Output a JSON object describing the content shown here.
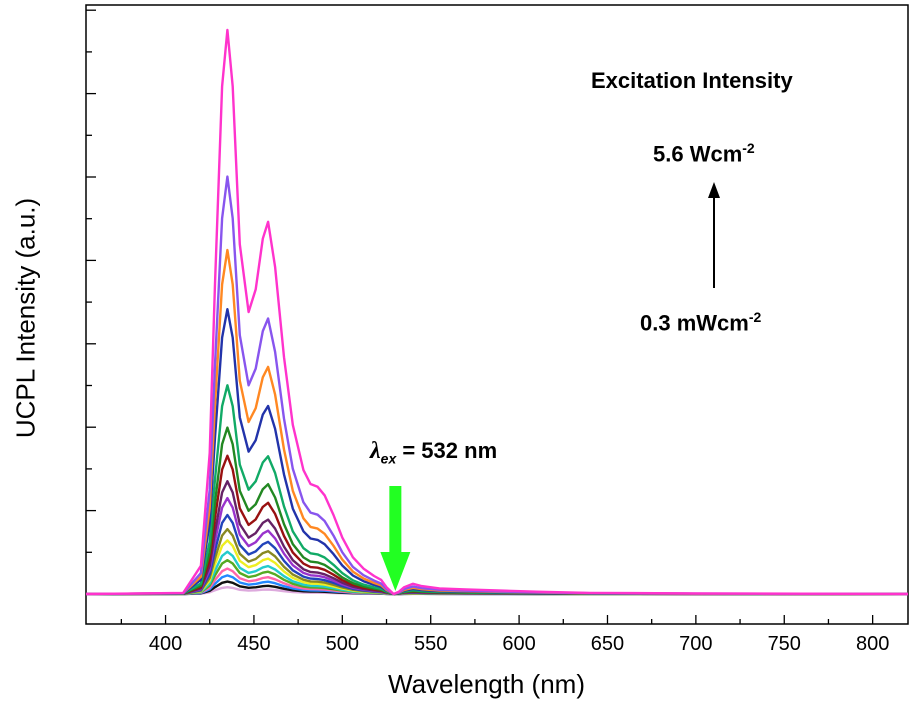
{
  "chart_data": {
    "type": "line",
    "xlabel": "Wavelength (nm)",
    "ylabel": "UCPL Intensity (a.u.)",
    "xlim": [
      355,
      820
    ],
    "ylim": [
      0,
      1.04
    ],
    "x_ticks": [
      400,
      450,
      500,
      550,
      600,
      650,
      700,
      750,
      800
    ],
    "y_ticks_labeled": false,
    "annotations": {
      "title": "Excitation Intensity",
      "high_value": "5.6 Wcm",
      "high_sup": "-2",
      "low_value": "0.3 mWcm",
      "low_sup": "-2",
      "excitation_symbol": "λ",
      "excitation_sub": "ex",
      "excitation_text": " = 532 nm"
    },
    "excitation_marker": {
      "x": 530,
      "color": "#22ff22"
    },
    "spectrum_shape": {
      "x": [
        355,
        410,
        420,
        425,
        428,
        432,
        435,
        438,
        442,
        447,
        451,
        455,
        458,
        462,
        467,
        472,
        478,
        482,
        486,
        490,
        495,
        500,
        506,
        512,
        518,
        522,
        525,
        529,
        532,
        535,
        540,
        545,
        555,
        570,
        590,
        610,
        640,
        700,
        820
      ],
      "y": [
        0,
        0.002,
        0.05,
        0.25,
        0.55,
        0.9,
        1.0,
        0.9,
        0.62,
        0.5,
        0.54,
        0.63,
        0.66,
        0.58,
        0.42,
        0.3,
        0.22,
        0.195,
        0.19,
        0.175,
        0.14,
        0.1,
        0.065,
        0.045,
        0.032,
        0.025,
        0.012,
        0.0,
        0.004,
        0.012,
        0.018,
        0.014,
        0.01,
        0.008,
        0.006,
        0.004,
        0.002,
        0.001,
        0.0
      ]
    },
    "series": [
      {
        "peak": 1.0,
        "color": "#ff33cc"
      },
      {
        "peak": 0.74,
        "color": "#8855ee"
      },
      {
        "peak": 0.61,
        "color": "#ff8822"
      },
      {
        "peak": 0.505,
        "color": "#2233aa"
      },
      {
        "peak": 0.37,
        "color": "#11aa66"
      },
      {
        "peak": 0.295,
        "color": "#228822"
      },
      {
        "peak": 0.245,
        "color": "#991111"
      },
      {
        "peak": 0.2,
        "color": "#662266"
      },
      {
        "peak": 0.17,
        "color": "#9933cc"
      },
      {
        "peak": 0.14,
        "color": "#2244bb"
      },
      {
        "peak": 0.115,
        "color": "#888822"
      },
      {
        "peak": 0.095,
        "color": "#eeee22"
      },
      {
        "peak": 0.075,
        "color": "#22cccc"
      },
      {
        "peak": 0.06,
        "color": "#55aa22"
      },
      {
        "peak": 0.045,
        "color": "#ff66aa"
      },
      {
        "peak": 0.033,
        "color": "#2288ff"
      },
      {
        "peak": 0.022,
        "color": "#111111"
      },
      {
        "peak": 0.012,
        "color": "#ddaadd"
      }
    ]
  }
}
